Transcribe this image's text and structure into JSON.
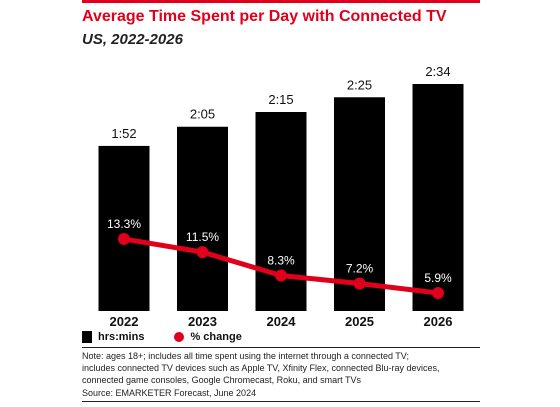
{
  "header": {
    "title": "Average Time Spent per Day with Connected TV",
    "subtitle": "US, 2022-2026"
  },
  "legend": {
    "bars": "hrs:mins",
    "line": "% change"
  },
  "footnote": {
    "lines": [
      "Note: ages 18+; includes all time spent using the internet through a connected TV;",
      "includes connected TV devices such as Apple TV, Xfinity Flex, connected Blu-ray devices,",
      "connected game consoles, Google Chromecast, Roku, and smart TVs",
      "Source: EMARKETER Forecast, June 2024"
    ]
  },
  "colors": {
    "accent": "#e0001b",
    "bar": "#000000"
  },
  "chart_data": {
    "type": "bar",
    "title": "Average Time Spent per Day with Connected TV",
    "subtitle": "US, 2022-2026",
    "categories": [
      "2022",
      "2023",
      "2024",
      "2025",
      "2026"
    ],
    "series": [
      {
        "name": "hrs:mins",
        "type": "bar",
        "values": [
          112,
          125,
          135,
          145,
          154
        ],
        "labels": [
          "1:52",
          "2:05",
          "2:15",
          "2:25",
          "2:34"
        ]
      },
      {
        "name": "% change",
        "type": "line",
        "values": [
          13.3,
          11.5,
          8.3,
          7.2,
          5.9
        ],
        "labels": [
          "13.3%",
          "11.5%",
          "8.3%",
          "7.2%",
          "5.9%"
        ]
      }
    ],
    "ylim": [
      0,
      154
    ],
    "line_ylim": [
      0,
      15.5
    ],
    "grid": false,
    "legend_position": "bottom-left"
  }
}
